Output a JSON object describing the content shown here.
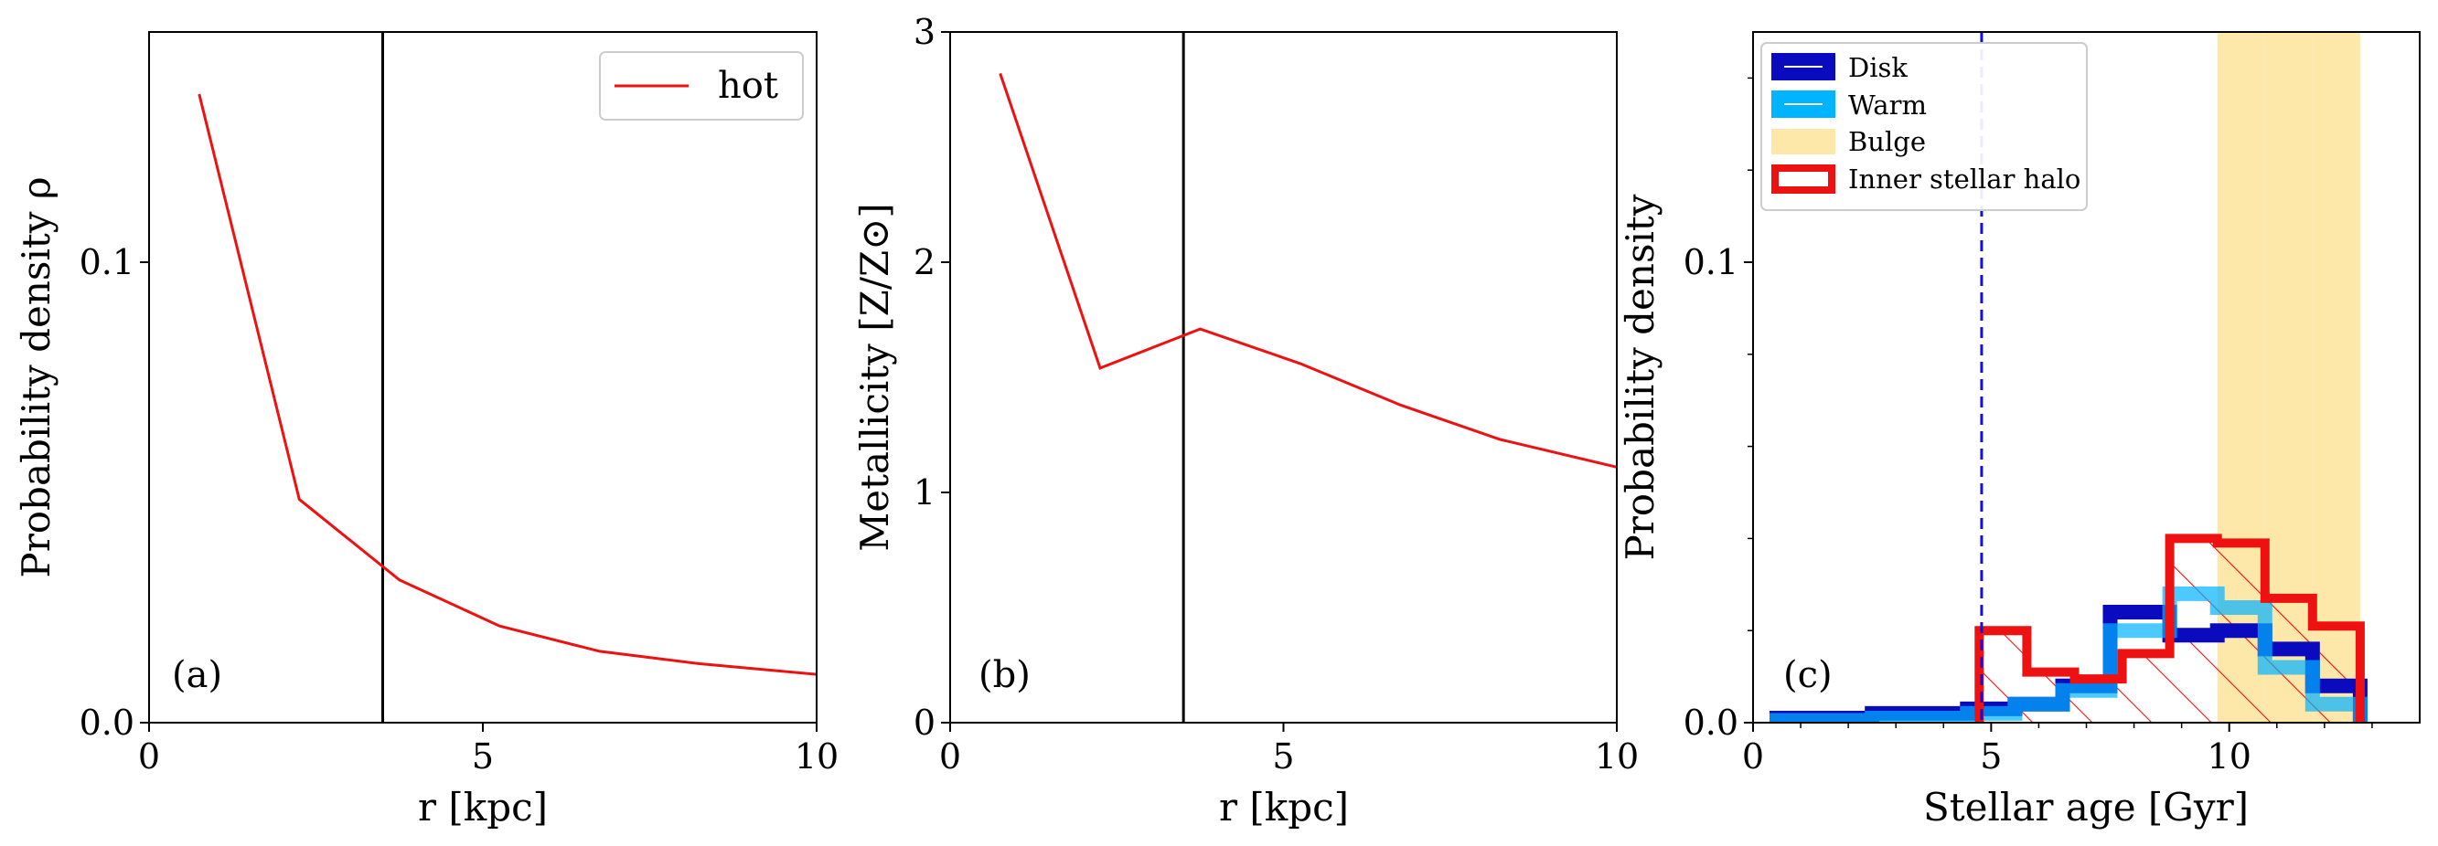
{
  "chart_data": [
    {
      "panel": "a",
      "type": "line",
      "panel_label": "(a)",
      "xlabel": "r [kpc]",
      "ylabel": "Probability density ρ",
      "xlim": [
        0,
        10
      ],
      "ylim": [
        0,
        0.15
      ],
      "xticks": [
        0,
        5,
        10
      ],
      "xtick_labels": [
        "0",
        "5",
        "10"
      ],
      "yticks": [
        0,
        0.1
      ],
      "ytick_labels": [
        "0.0",
        "0.1"
      ],
      "vline_x": 3.5,
      "legend": [
        "hot"
      ],
      "series": [
        {
          "name": "hot",
          "color": "#ee1111",
          "x": [
            0.75,
            2.25,
            3.75,
            5.25,
            6.75,
            8.25,
            10.0
          ],
          "y": [
            0.1365,
            0.0485,
            0.031,
            0.021,
            0.0155,
            0.0128,
            0.0105
          ]
        }
      ]
    },
    {
      "panel": "b",
      "type": "line",
      "panel_label": "(b)",
      "xlabel": "r [kpc]",
      "ylabel": "Metallicity [Z/Z⊙]",
      "xlim": [
        0,
        10
      ],
      "ylim": [
        0,
        3
      ],
      "xticks": [
        0,
        5,
        10
      ],
      "xtick_labels": [
        "0",
        "5",
        "10"
      ],
      "yticks": [
        0,
        1,
        2,
        3
      ],
      "ytick_labels": [
        "0",
        "1",
        "2",
        "3"
      ],
      "vline_x": 3.5,
      "series": [
        {
          "name": "hot",
          "color": "#ee1111",
          "x": [
            0.75,
            2.25,
            3.75,
            5.25,
            6.75,
            8.25,
            10.0
          ],
          "y": [
            2.82,
            1.54,
            1.71,
            1.56,
            1.38,
            1.23,
            1.11
          ]
        }
      ]
    },
    {
      "panel": "c",
      "type": "bar",
      "panel_label": "(c)",
      "xlabel": "Stellar age [Gyr]",
      "ylabel": "Probability density",
      "xlim": [
        0,
        14
      ],
      "ylim": [
        0,
        0.15
      ],
      "xticks": [
        0,
        5,
        10
      ],
      "xtick_labels": [
        "0",
        "5",
        "10"
      ],
      "yticks": [
        0,
        0.1
      ],
      "ytick_labels": [
        "0.0",
        "0.1"
      ],
      "dashed_vline_x": 4.8,
      "bin_edges": [
        0.5,
        1.5,
        2.5,
        3.5,
        4.5,
        5.5,
        6.5,
        7.5,
        8.5,
        9.5,
        10.5,
        11.5,
        12.5
      ],
      "series": [
        {
          "name": "Disk",
          "color": "#0a0abf",
          "bin_edges": [
            0.5,
            1.5,
            2.5,
            3.5,
            4.5,
            5.5,
            6.5,
            7.5,
            8.75,
            9.75,
            10.75,
            11.75,
            12.75
          ],
          "values": [
            0.001,
            0.001,
            0.002,
            0.002,
            0.003,
            0.004,
            0.008,
            0.024,
            0.019,
            0.02,
            0.016,
            0.008
          ]
        },
        {
          "name": "Warm",
          "color": "#00b4ff",
          "bin_edges": [
            0.5,
            1.5,
            2.5,
            3.5,
            4.5,
            5.5,
            6.5,
            7.5,
            8.75,
            9.75,
            10.75,
            11.75,
            12.75
          ],
          "values": [
            0.0005,
            0.0005,
            0.001,
            0.001,
            0.002,
            0.004,
            0.007,
            0.02,
            0.028,
            0.025,
            0.012,
            0.004
          ]
        },
        {
          "name": "Bulge",
          "color": "#fde8aa",
          "bin_edges": [
            9.75,
            10.75,
            11.75,
            12.75
          ],
          "values": [
            0.152,
            0.152,
            0.15
          ]
        },
        {
          "name": "Inner stellar halo",
          "color": "#ee1111",
          "bin_edges": [
            4.75,
            5.75,
            6.75,
            7.75,
            8.75,
            9.75,
            10.75,
            11.75,
            12.75
          ],
          "values": [
            0.02,
            0.011,
            0.0095,
            0.015,
            0.04,
            0.039,
            0.027,
            0.021
          ]
        }
      ],
      "legend": [
        {
          "label": "Disk",
          "color": "#0a0abf"
        },
        {
          "label": "Warm",
          "color": "#00b4ff"
        },
        {
          "label": "Bulge",
          "color": "#fde8aa"
        },
        {
          "label": "Inner stellar halo",
          "color": "#ee1111"
        }
      ]
    }
  ]
}
